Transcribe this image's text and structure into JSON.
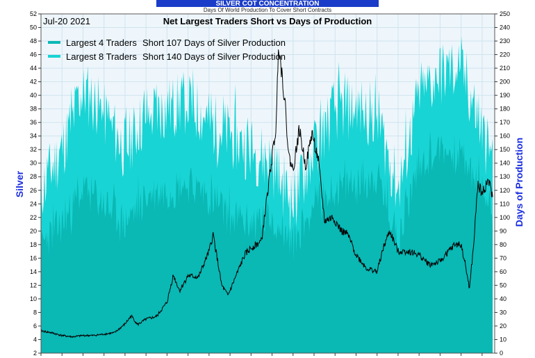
{
  "header": {
    "banner": "SILVER COT CONCENTRATION",
    "subtitle": "Days Of World Production To Cover Short Contracts"
  },
  "chart_data": {
    "type": "area",
    "title": "Net Largest Traders Short vs Days of Production",
    "date_label": "Jul-20  2021",
    "ylabel_left": "Silver",
    "ylabel_right": "Days of Production",
    "ylim_left": [
      2,
      52
    ],
    "ylim_right": [
      0,
      250
    ],
    "left_ticks": [
      2,
      4,
      6,
      8,
      10,
      12,
      14,
      16,
      18,
      20,
      22,
      24,
      26,
      28,
      30,
      32,
      34,
      36,
      38,
      40,
      42,
      44,
      46,
      48,
      50,
      52
    ],
    "right_ticks": [
      0,
      10,
      20,
      30,
      40,
      50,
      60,
      70,
      80,
      90,
      100,
      110,
      120,
      130,
      140,
      150,
      160,
      170,
      180,
      190,
      200,
      210,
      220,
      230,
      240,
      250
    ],
    "x_years": [
      2000,
      2001,
      2002,
      2003,
      2004,
      2005,
      2006,
      2007,
      2008,
      2009,
      2010,
      2011,
      2012,
      2013,
      2014,
      2015,
      2016,
      2017,
      2018,
      2019,
      2020,
      2021
    ],
    "grid": true,
    "series": [
      {
        "name": "Largest 8 Traders",
        "label": "Short 140 Days of Silver Production",
        "color": "#19d4d4",
        "axis": "right",
        "values": [
          120,
          150,
          195,
          175,
          150,
          175,
          180,
          185,
          170,
          160,
          150,
          140,
          110,
          150,
          180,
          180,
          175,
          120,
          190,
          205,
          210,
          140
        ],
        "x": [
          2000,
          2001,
          2002,
          2003,
          2004,
          2005,
          2006,
          2007,
          2008,
          2009,
          2010,
          2011,
          2012,
          2013,
          2014,
          2015,
          2016,
          2017,
          2018,
          2019,
          2020,
          2021.5
        ]
      },
      {
        "name": "Largest 4 Traders",
        "label": "Short 107 Days of Silver Production",
        "color": "#0ab8b4",
        "axis": "right",
        "values": [
          80,
          95,
          120,
          110,
          95,
          115,
          120,
          125,
          115,
          100,
          95,
          100,
          80,
          110,
          120,
          125,
          130,
          85,
          140,
          150,
          145,
          107
        ],
        "x": [
          2000,
          2001,
          2002,
          2003,
          2004,
          2005,
          2006,
          2007,
          2008,
          2009,
          2010,
          2011,
          2012,
          2013,
          2014,
          2015,
          2016,
          2017,
          2018,
          2019,
          2020,
          2021.5
        ]
      },
      {
        "name": "Silver Price",
        "color": "#000000",
        "axis": "left",
        "x": [
          2000,
          2000.5,
          2001,
          2001.5,
          2002,
          2002.5,
          2003,
          2003.5,
          2004,
          2004.3,
          2004.6,
          2005,
          2005.5,
          2006,
          2006.3,
          2006.6,
          2007,
          2007.5,
          2008,
          2008.2,
          2008.6,
          2008.9,
          2009.3,
          2009.7,
          2010,
          2010.5,
          2010.9,
          2011.2,
          2011.3,
          2011.6,
          2011.8,
          2012,
          2012.3,
          2012.6,
          2012.9,
          2013.2,
          2013.5,
          2013.9,
          2014.3,
          2014.6,
          2015,
          2015.5,
          2016,
          2016.3,
          2016.6,
          2017,
          2017.5,
          2018,
          2018.5,
          2019,
          2019.4,
          2019.7,
          2020,
          2020.2,
          2020.4,
          2020.6,
          2020.8,
          2021,
          2021.3,
          2021.5
        ],
        "values": [
          5.3,
          5.0,
          4.6,
          4.4,
          4.6,
          4.6,
          4.8,
          5.0,
          6.3,
          7.5,
          6.2,
          7.0,
          7.4,
          9.5,
          13.5,
          11.2,
          13.4,
          13.2,
          17.0,
          19.5,
          12.0,
          10.5,
          13.5,
          16.5,
          17.5,
          18.5,
          28.5,
          35.5,
          48.0,
          39.5,
          31.0,
          29.0,
          35.0,
          29.5,
          34.5,
          30.5,
          21.5,
          22.0,
          20.0,
          19.5,
          16.5,
          14.5,
          14.0,
          17.5,
          20.0,
          17.0,
          17.0,
          16.5,
          15.0,
          15.5,
          17.0,
          18.0,
          18.0,
          15.0,
          11.5,
          18.0,
          27.0,
          25.5,
          27.5,
          25.0
        ]
      }
    ]
  }
}
